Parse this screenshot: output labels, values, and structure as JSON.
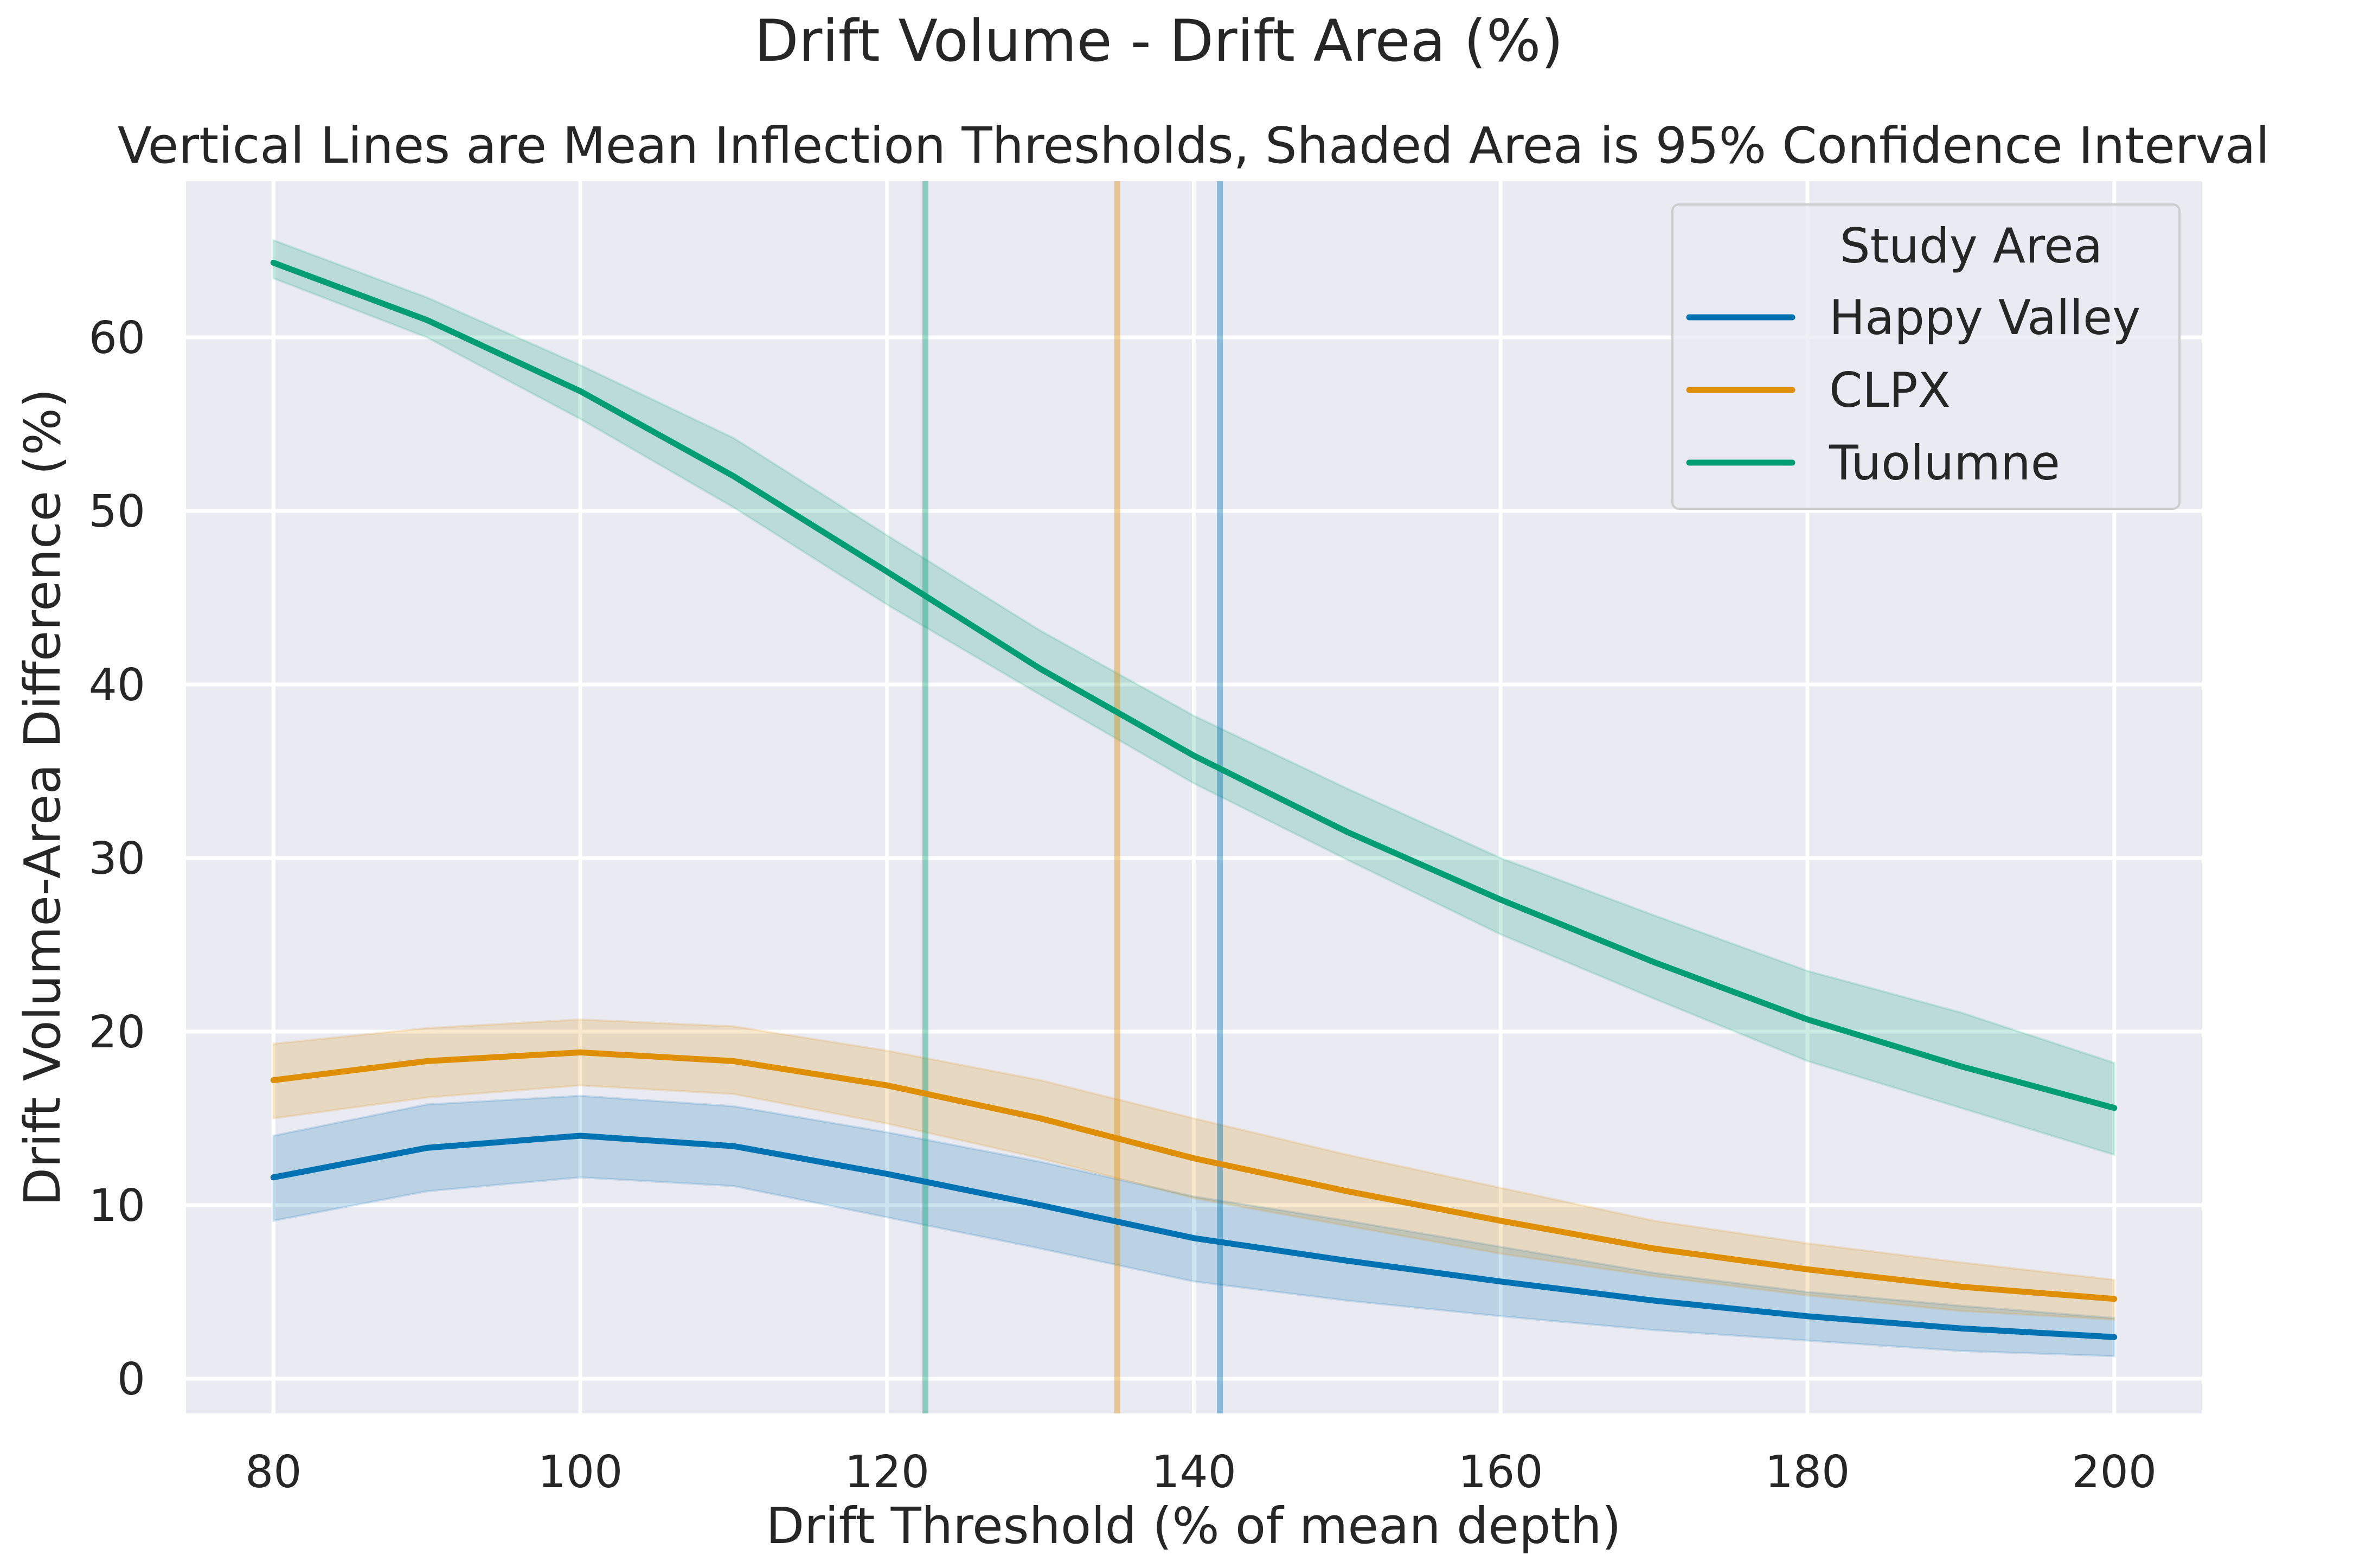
{
  "chart_data": {
    "type": "line",
    "title": "Drift Volume - Drift Area (%)",
    "subtitle": "Vertical Lines are Mean Inflection Thresholds, Shaded Area is 95% Confidence Interval",
    "xlabel": "Drift Threshold (% of mean depth)",
    "ylabel": "Drift Volume-Area Difference (%)",
    "xlim": [
      74.3,
      205.7
    ],
    "ylim": [
      -2.0,
      69.0
    ],
    "xticks": [
      80,
      100,
      120,
      140,
      160,
      180,
      200
    ],
    "yticks": [
      0,
      10,
      20,
      30,
      40,
      50,
      60
    ],
    "grid": true,
    "legend": {
      "title": "Study Area",
      "position": "top-right"
    },
    "x": [
      80,
      90,
      100,
      110,
      120,
      130,
      140,
      150,
      160,
      170,
      180,
      190,
      200
    ],
    "series": [
      {
        "name": "Happy Valley",
        "color": "#0173b2",
        "values": [
          11.6,
          13.3,
          14.0,
          13.4,
          11.8,
          10.0,
          8.1,
          6.8,
          5.6,
          4.5,
          3.6,
          2.9,
          2.4
        ],
        "ci_low": [
          9.1,
          10.8,
          11.6,
          11.1,
          9.3,
          7.5,
          5.6,
          4.5,
          3.6,
          2.8,
          2.2,
          1.6,
          1.3
        ],
        "ci_high": [
          14.0,
          15.8,
          16.3,
          15.7,
          14.2,
          12.5,
          10.5,
          9.1,
          7.6,
          6.1,
          5.0,
          4.2,
          3.5
        ],
        "threshold": 141.7
      },
      {
        "name": "CLPX",
        "color": "#de8f05",
        "values": [
          17.2,
          18.3,
          18.8,
          18.3,
          16.9,
          15.0,
          12.7,
          10.8,
          9.1,
          7.5,
          6.3,
          5.3,
          4.6
        ],
        "ci_low": [
          15.0,
          16.2,
          16.9,
          16.4,
          14.7,
          12.7,
          10.4,
          8.8,
          7.2,
          5.9,
          4.8,
          3.9,
          3.4
        ],
        "ci_high": [
          19.3,
          20.2,
          20.7,
          20.3,
          18.9,
          17.2,
          15.0,
          12.9,
          11.0,
          9.1,
          7.8,
          6.7,
          5.7
        ],
        "threshold": 135.0
      },
      {
        "name": "Tuolumne",
        "color": "#029e73",
        "values": [
          64.3,
          61.0,
          56.9,
          52.0,
          46.5,
          40.9,
          35.9,
          31.5,
          27.6,
          24.0,
          20.7,
          18.0,
          15.6
        ],
        "ci_low": [
          63.4,
          60.0,
          55.3,
          50.2,
          44.6,
          39.4,
          34.3,
          29.9,
          25.6,
          21.9,
          18.3,
          15.6,
          12.9
        ],
        "ci_high": [
          65.6,
          62.3,
          58.4,
          54.2,
          48.6,
          43.1,
          38.2,
          34.0,
          30.0,
          26.7,
          23.5,
          21.1,
          18.2
        ],
        "threshold": 122.5
      }
    ]
  }
}
